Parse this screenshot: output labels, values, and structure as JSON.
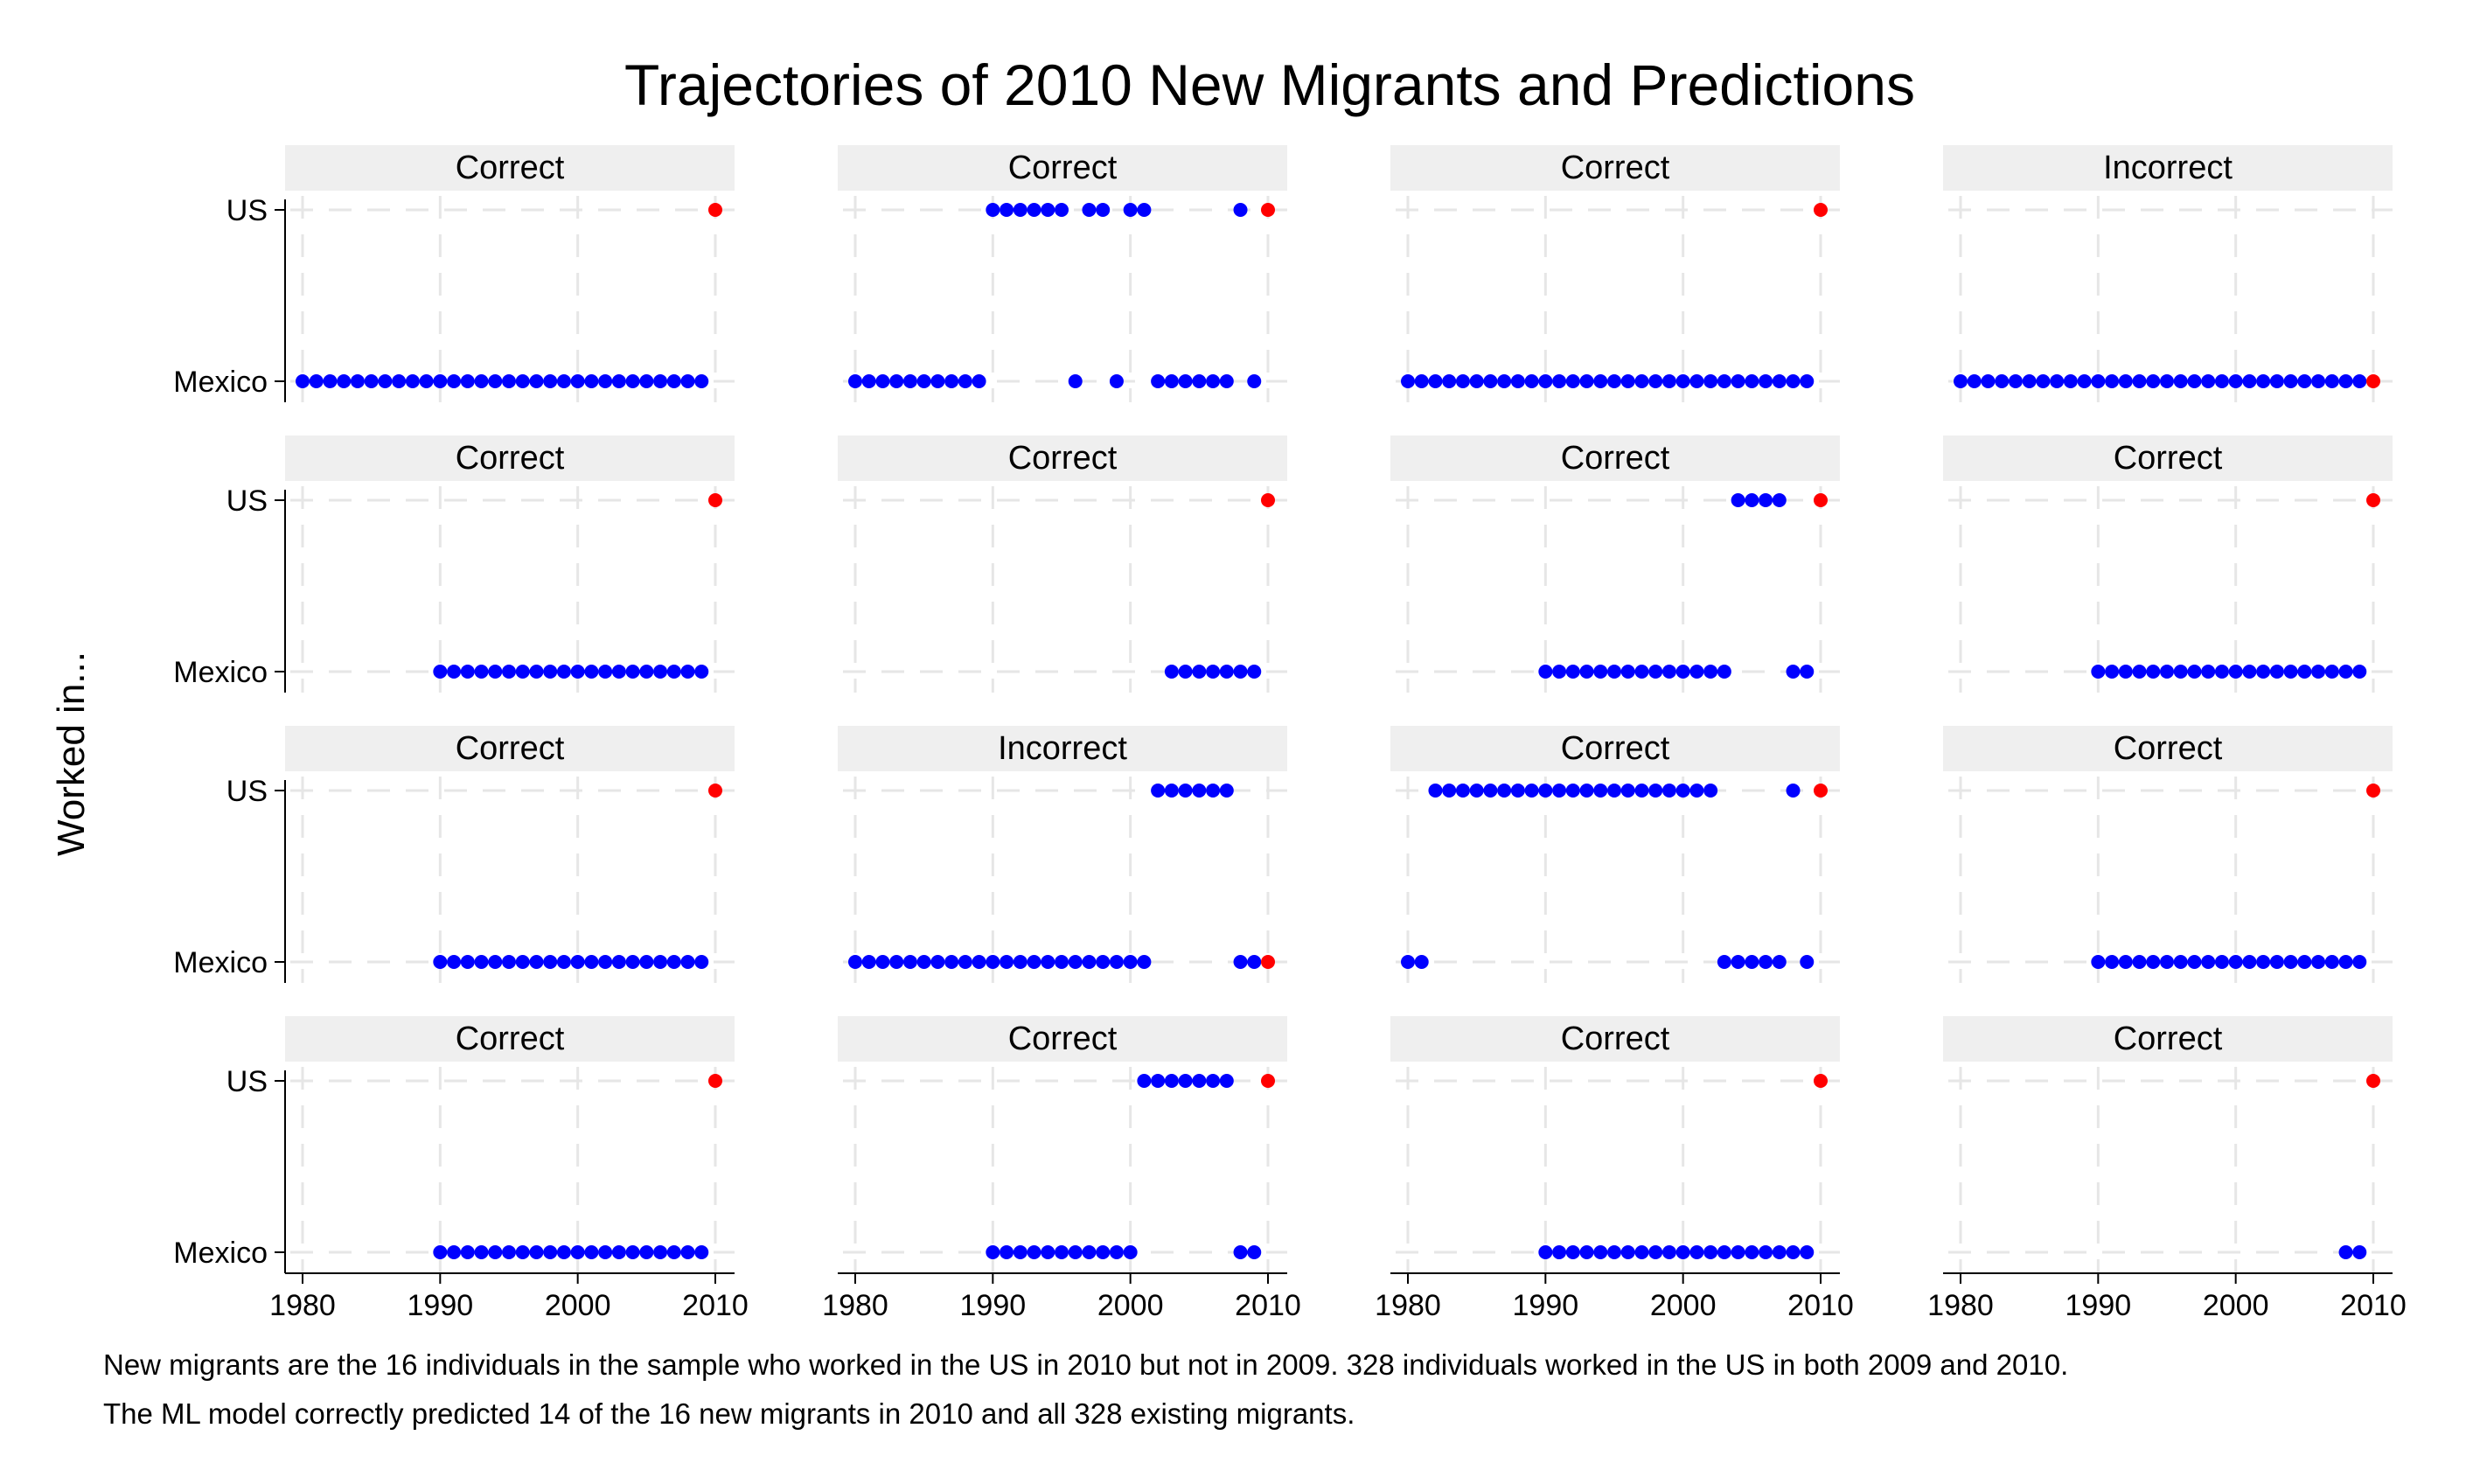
{
  "chart_data": {
    "type": "scatter",
    "title": "Trajectories of 2010 New Migrants and Predictions",
    "ylabel": "Worked in...",
    "xlabel": "",
    "xlim": [
      1980,
      2010
    ],
    "xticks": [
      1980,
      1990,
      2000,
      2010
    ],
    "yticks": [
      "US",
      "Mexico"
    ],
    "grid": true,
    "layout": "4x4 facet grid",
    "colors": {
      "observed": "#0000ff",
      "prediction_2010": "#ff0000",
      "strip": "#efefef",
      "grid": "#e6e6e6"
    },
    "panels": [
      {
        "label": "Correct",
        "us": [],
        "mexico": [
          1980,
          1981,
          1982,
          1983,
          1984,
          1985,
          1986,
          1987,
          1988,
          1989,
          1990,
          1991,
          1992,
          1993,
          1994,
          1995,
          1996,
          1997,
          1998,
          1999,
          2000,
          2001,
          2002,
          2003,
          2004,
          2005,
          2006,
          2007,
          2008,
          2009
        ],
        "prediction": "US"
      },
      {
        "label": "Correct",
        "us": [
          1990,
          1991,
          1992,
          1993,
          1994,
          1995,
          1997,
          1998,
          2000,
          2001,
          2008
        ],
        "mexico": [
          1980,
          1981,
          1982,
          1983,
          1984,
          1985,
          1986,
          1987,
          1988,
          1989,
          1996,
          1999,
          2002,
          2003,
          2004,
          2005,
          2006,
          2007,
          2009
        ],
        "prediction": "US"
      },
      {
        "label": "Correct",
        "us": [],
        "mexico": [
          1980,
          1981,
          1982,
          1983,
          1984,
          1985,
          1986,
          1987,
          1988,
          1989,
          1990,
          1991,
          1992,
          1993,
          1994,
          1995,
          1996,
          1997,
          1998,
          1999,
          2000,
          2001,
          2002,
          2003,
          2004,
          2005,
          2006,
          2007,
          2008,
          2009
        ],
        "prediction": "US"
      },
      {
        "label": "Incorrect",
        "us": [],
        "mexico": [
          1980,
          1981,
          1982,
          1983,
          1984,
          1985,
          1986,
          1987,
          1988,
          1989,
          1990,
          1991,
          1992,
          1993,
          1994,
          1995,
          1996,
          1997,
          1998,
          1999,
          2000,
          2001,
          2002,
          2003,
          2004,
          2005,
          2006,
          2007,
          2008,
          2009
        ],
        "prediction": "Mexico"
      },
      {
        "label": "Correct",
        "us": [],
        "mexico": [
          1990,
          1991,
          1992,
          1993,
          1994,
          1995,
          1996,
          1997,
          1998,
          1999,
          2000,
          2001,
          2002,
          2003,
          2004,
          2005,
          2006,
          2007,
          2008,
          2009
        ],
        "prediction": "US"
      },
      {
        "label": "Correct",
        "us": [],
        "mexico": [
          2003,
          2004,
          2005,
          2006,
          2007,
          2008,
          2009
        ],
        "prediction": "US"
      },
      {
        "label": "Correct",
        "us": [
          2004,
          2005,
          2006,
          2007
        ],
        "mexico": [
          1990,
          1991,
          1992,
          1993,
          1994,
          1995,
          1996,
          1997,
          1998,
          1999,
          2000,
          2001,
          2002,
          2003,
          2008,
          2009
        ],
        "prediction": "US"
      },
      {
        "label": "Correct",
        "us": [],
        "mexico": [
          1990,
          1991,
          1992,
          1993,
          1994,
          1995,
          1996,
          1997,
          1998,
          1999,
          2000,
          2001,
          2002,
          2003,
          2004,
          2005,
          2006,
          2007,
          2008,
          2009
        ],
        "prediction": "US"
      },
      {
        "label": "Correct",
        "us": [],
        "mexico": [
          1990,
          1991,
          1992,
          1993,
          1994,
          1995,
          1996,
          1997,
          1998,
          1999,
          2000,
          2001,
          2002,
          2003,
          2004,
          2005,
          2006,
          2007,
          2008,
          2009
        ],
        "prediction": "US"
      },
      {
        "label": "Incorrect",
        "us": [
          2002,
          2003,
          2004,
          2005,
          2006,
          2007
        ],
        "mexico": [
          1980,
          1981,
          1982,
          1983,
          1984,
          1985,
          1986,
          1987,
          1988,
          1989,
          1990,
          1991,
          1992,
          1993,
          1994,
          1995,
          1996,
          1997,
          1998,
          1999,
          2000,
          2001,
          2008,
          2009
        ],
        "prediction": "Mexico"
      },
      {
        "label": "Correct",
        "us": [
          1982,
          1983,
          1984,
          1985,
          1986,
          1987,
          1988,
          1989,
          1990,
          1991,
          1992,
          1993,
          1994,
          1995,
          1996,
          1997,
          1998,
          1999,
          2000,
          2001,
          2002,
          2008
        ],
        "mexico": [
          1980,
          1981,
          2003,
          2004,
          2005,
          2006,
          2007,
          2009
        ],
        "prediction": "US"
      },
      {
        "label": "Correct",
        "us": [],
        "mexico": [
          1990,
          1991,
          1992,
          1993,
          1994,
          1995,
          1996,
          1997,
          1998,
          1999,
          2000,
          2001,
          2002,
          2003,
          2004,
          2005,
          2006,
          2007,
          2008,
          2009
        ],
        "prediction": "US"
      },
      {
        "label": "Correct",
        "us": [],
        "mexico": [
          1990,
          1991,
          1992,
          1993,
          1994,
          1995,
          1996,
          1997,
          1998,
          1999,
          2000,
          2001,
          2002,
          2003,
          2004,
          2005,
          2006,
          2007,
          2008,
          2009
        ],
        "prediction": "US"
      },
      {
        "label": "Correct",
        "us": [
          2001,
          2002,
          2003,
          2004,
          2005,
          2006,
          2007
        ],
        "mexico": [
          1990,
          1991,
          1992,
          1993,
          1994,
          1995,
          1996,
          1997,
          1998,
          1999,
          2000,
          2008,
          2009
        ],
        "prediction": "US"
      },
      {
        "label": "Correct",
        "us": [],
        "mexico": [
          1990,
          1991,
          1992,
          1993,
          1994,
          1995,
          1996,
          1997,
          1998,
          1999,
          2000,
          2001,
          2002,
          2003,
          2004,
          2005,
          2006,
          2007,
          2008,
          2009
        ],
        "prediction": "US"
      },
      {
        "label": "Correct",
        "us": [],
        "mexico": [
          2008,
          2009
        ],
        "prediction": "US"
      }
    ]
  },
  "notes": {
    "line1": "New migrants are the 16 individuals in the sample who worked in the US in 2010 but not in 2009. 328 individuals worked in the US in both 2009 and 2010.",
    "line2": "The ML model correctly predicted 14 of the 16 new migrants in 2010 and all 328 existing migrants."
  }
}
